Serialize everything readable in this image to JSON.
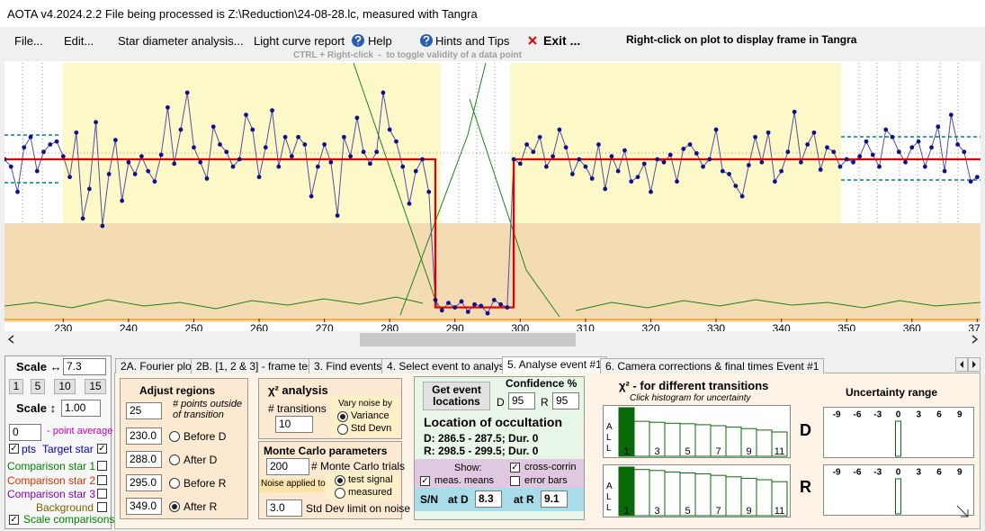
{
  "window": {
    "title": "AOTA v4.2024.2.2    File being processed is Z:\\Reduction\\24-08-28.lc, measured with Tangra"
  },
  "menu": {
    "items": [
      "File...",
      "Edit...",
      "Star diameter analysis...",
      "Light curve report",
      "Help",
      "Hints and Tips",
      "Exit ..."
    ],
    "right_click_hint": "Right-click on plot to display frame in Tangra",
    "ctrl_hint": "CTRL + Right-click  -  to toggle validity of a data point"
  },
  "plot": {
    "type": "line",
    "xlim": [
      221,
      370.5
    ],
    "ylim": [
      -0.1,
      1.65
    ],
    "xticks": [
      230,
      240,
      250,
      260,
      270,
      280,
      290,
      300,
      310,
      320,
      330,
      340,
      350,
      360,
      370
    ],
    "x": [
      221,
      222,
      223,
      224,
      225,
      226,
      227,
      228,
      229,
      230,
      231,
      232,
      233,
      234,
      235,
      236,
      237,
      238,
      239,
      240,
      241,
      242,
      243,
      244,
      245,
      246,
      247,
      248,
      249,
      250,
      251,
      252,
      253,
      254,
      255,
      256,
      257,
      258,
      259,
      260,
      261,
      262,
      263,
      264,
      265,
      266,
      267,
      268,
      269,
      270,
      271,
      272,
      273,
      274,
      275,
      276,
      277,
      278,
      279,
      280,
      281,
      282,
      283,
      284,
      285,
      286,
      287,
      288,
      289,
      290,
      291,
      292,
      293,
      294,
      295,
      296,
      297,
      298,
      299,
      300,
      301,
      302,
      303,
      304,
      305,
      306,
      307,
      308,
      309,
      310,
      311,
      312,
      313,
      314,
      315,
      316,
      317,
      318,
      319,
      320,
      321,
      322,
      323,
      324,
      325,
      326,
      327,
      328,
      329,
      330,
      331,
      332,
      333,
      334,
      335,
      336,
      337,
      338,
      339,
      340,
      341,
      342,
      343,
      344,
      345,
      346,
      347,
      348,
      349,
      350,
      351,
      352,
      353,
      354,
      355,
      356,
      357,
      358,
      359,
      360,
      361,
      362,
      363,
      364,
      365,
      366,
      367,
      368,
      369,
      370
    ],
    "values": [
      1.0,
      0.95,
      0.78,
      1.08,
      1.15,
      0.92,
      1.05,
      1.1,
      1.12,
      1.02,
      0.88,
      1.18,
      0.6,
      0.8,
      1.25,
      0.55,
      0.9,
      1.13,
      0.72,
      0.98,
      0.9,
      1.02,
      0.92,
      0.85,
      1.03,
      1.35,
      0.97,
      1.2,
      1.45,
      1.08,
      0.98,
      0.87,
      1.22,
      1.1,
      1.05,
      0.95,
      1.0,
      1.3,
      1.2,
      0.88,
      1.08,
      1.33,
      0.95,
      1.15,
      1.02,
      1.15,
      1.1,
      0.75,
      0.95,
      1.1,
      0.98,
      0.62,
      1.15,
      1.02,
      1.28,
      1.05,
      0.97,
      1.05,
      1.45,
      1.2,
      1.12,
      0.95,
      0.7,
      0.92,
      1.0,
      0.78,
      0.05,
      -0.02,
      0.03,
      0.0,
      0.04,
      -0.03,
      0.02,
      0.01,
      -0.04,
      0.05,
      0.02,
      0.0,
      1.0,
      0.97,
      1.1,
      1.05,
      1.15,
      0.95,
      1.02,
      1.2,
      1.08,
      0.9,
      1.0,
      0.95,
      0.87,
      1.1,
      0.8,
      1.02,
      0.92,
      1.06,
      0.85,
      0.88,
      0.97,
      0.78,
      1.0,
      0.98,
      1.03,
      0.85,
      1.07,
      1.1,
      1.04,
      0.95,
      1.0,
      1.2,
      0.92,
      0.9,
      0.82,
      0.75,
      0.96,
      1.15,
      0.98,
      1.18,
      0.85,
      0.92,
      1.05,
      1.32,
      0.98,
      1.1,
      1.18,
      0.93,
      1.08,
      1.05,
      0.95,
      1.0,
      0.98,
      1.02,
      1.12,
      1.03,
      0.95,
      1.2,
      1.15,
      1.05,
      0.98,
      1.08,
      1.12,
      0.95,
      1.08,
      1.22,
      0.92,
      1.3,
      1.1,
      1.05,
      0.85,
      0.88
    ],
    "model": {
      "x": [
        221,
        287,
        287,
        299,
        299,
        370.5
      ],
      "values": [
        1,
        1,
        0,
        0,
        1,
        1
      ]
    }
  },
  "left_panel": {
    "scale_h_label": "Scale ↔",
    "scale_h": "7.3",
    "scale_buttons": [
      "1",
      "5",
      "10",
      "15"
    ],
    "scale_v_label": "Scale ↕",
    "scale_v": "1.00",
    "point_average": "0",
    "point_average_label": "- point average",
    "pts": "pts",
    "series": [
      "Target star",
      "Comparison star 1",
      "Comparison star 2",
      "Comparison star 3",
      "Background",
      "Scale comparisons"
    ]
  },
  "tabs": [
    "2A. Fourier plot",
    "2B. [1, 2 & 3] - frame test",
    "3. Find events",
    "4. Select event to analyse",
    "5. Analyse event #1",
    "6. Camera corrections & final times Event #1"
  ],
  "adjust_regions": {
    "title": "Adjust regions",
    "points": "25",
    "points_label": "# points outside of transition",
    "regions": [
      {
        "value": "230.0",
        "label": "Before D"
      },
      {
        "value": "288.0",
        "label": "After D"
      },
      {
        "value": "295.0",
        "label": "Before R"
      },
      {
        "value": "349.0",
        "label": "After R"
      }
    ]
  },
  "chi2": {
    "title": "χ² analysis",
    "transitions_label": "# transitions",
    "transitions": "10",
    "vary_label": "Vary noise by",
    "options": [
      "Variance",
      "Std Devn"
    ]
  },
  "monte_carlo": {
    "title": "Monte Carlo parameters",
    "trials": "200",
    "trials_label": "# Monte Carlo trials",
    "noise_label": "Noise applied to",
    "noise_options": [
      "test signal",
      "measured"
    ],
    "limit": "3.0",
    "limit_label": "Std Dev limit on noise"
  },
  "event": {
    "button": "Get event locations",
    "confidence_title": "Confidence %",
    "d_label": "D",
    "d_confidence": "95",
    "r_label": "R",
    "r_confidence": "95",
    "location_title": "Location of occultation",
    "d_location": "D: 286.5 - 287.5; Dur. 0",
    "r_location": "R: 298.5 - 299.5; Dur. 0",
    "show_label": "Show:",
    "show_options": [
      "cross-corrin",
      "meas. means",
      "error bars"
    ],
    "sn_label": "S/N",
    "at_d_label": "at D",
    "sn_d": "8.3",
    "at_r_label": "at R",
    "sn_r": "9.1"
  },
  "histogram": {
    "title": "χ² - for different transitions",
    "subtitle": "Click histogram for uncertainty",
    "all_label": "ALL",
    "categories": [
      "1",
      null,
      "3",
      null,
      "5",
      null,
      "7",
      null,
      "9",
      null,
      "11"
    ],
    "d_label": "D",
    "d_values": [
      100,
      72,
      70,
      68,
      67,
      65,
      63,
      60,
      57,
      54,
      50
    ],
    "r_label": "R",
    "r_values": [
      100,
      95,
      93,
      90,
      88,
      86,
      83,
      80,
      77,
      74,
      70
    ],
    "ylim": [
      0,
      100
    ]
  },
  "uncertainty": {
    "title": "Uncertainty range",
    "xlim": [
      -11,
      11
    ],
    "xticks": [
      -9,
      -6,
      -3,
      0,
      3,
      6,
      9
    ],
    "d_location": 0,
    "r_location": 0
  }
}
